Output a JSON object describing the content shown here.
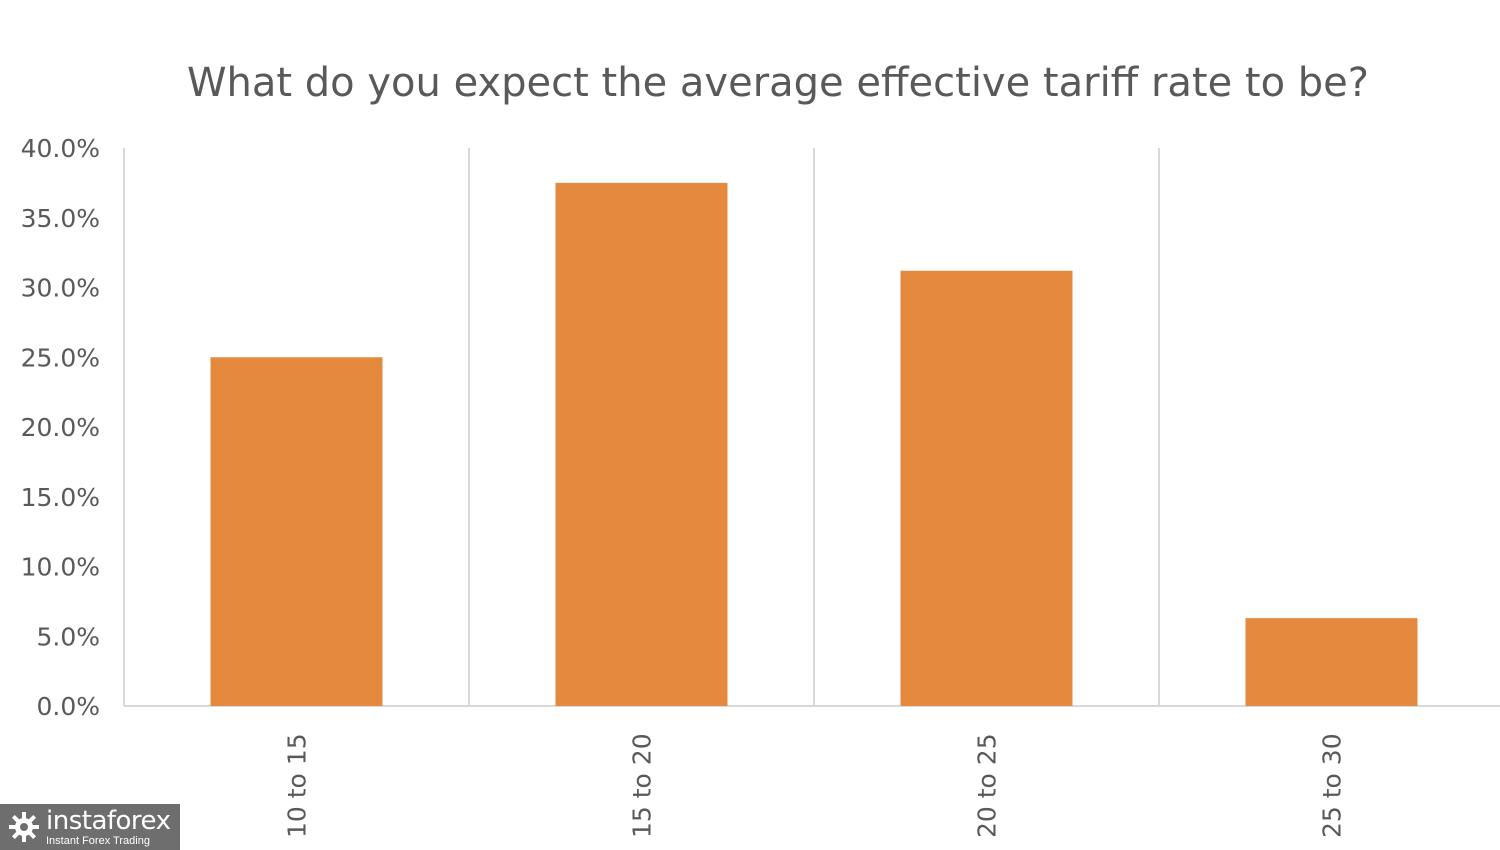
{
  "chart_data": {
    "type": "bar",
    "title": "What do you expect the average effective tariff rate to be?",
    "categories": [
      "10 to 15",
      "15 to 20",
      "20 to 25",
      "25 to 30"
    ],
    "values": [
      25.0,
      37.5,
      31.2,
      6.3
    ],
    "ylim": [
      0,
      40
    ],
    "yticks": [
      "0.0%",
      "5.0%",
      "10.0%",
      "15.0%",
      "20.0%",
      "25.0%",
      "30.0%",
      "35.0%",
      "40.0%"
    ],
    "xlabel": "",
    "ylabel": "",
    "grid": "vertical category separators",
    "bar_color": "#E5893F",
    "axis_color": "#d9d9d9",
    "text_color": "#595959"
  },
  "watermark": {
    "brand": "instaforex",
    "tagline": "Instant Forex Trading",
    "icon": "gear-logo-icon"
  }
}
